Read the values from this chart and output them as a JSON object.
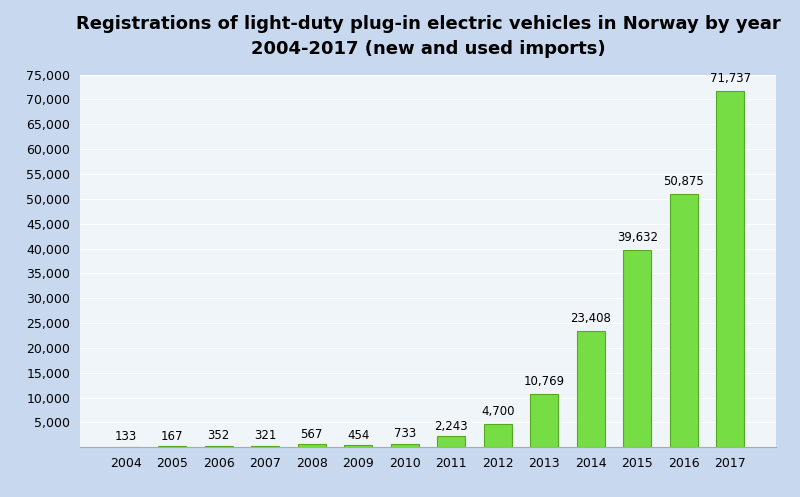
{
  "years": [
    "2004",
    "2005",
    "2006",
    "2007",
    "2008",
    "2009",
    "2010",
    "2011",
    "2012",
    "2013",
    "2014",
    "2015",
    "2016",
    "2017"
  ],
  "values": [
    133,
    167,
    352,
    321,
    567,
    454,
    733,
    2243,
    4700,
    10769,
    23408,
    39632,
    50875,
    71737
  ],
  "bar_color": "#77DD44",
  "bar_edge_color": "#55AA22",
  "title_line1": "Registrations of light-duty plug-in electric vehicles in Norway by year",
  "title_line2": "2004-2017 (new and used imports)",
  "ylim": [
    0,
    75000
  ],
  "yticks": [
    0,
    5000,
    10000,
    15000,
    20000,
    25000,
    30000,
    35000,
    40000,
    45000,
    50000,
    55000,
    60000,
    65000,
    70000,
    75000
  ],
  "bg_color_top": "#c8d8ee",
  "bg_color_bottom": "#e8f0f8",
  "plot_bg_top": "#d8e8f4",
  "plot_bg_bottom": "#f0f5fa",
  "label_fontsize": 8.5,
  "title_fontsize": 13
}
